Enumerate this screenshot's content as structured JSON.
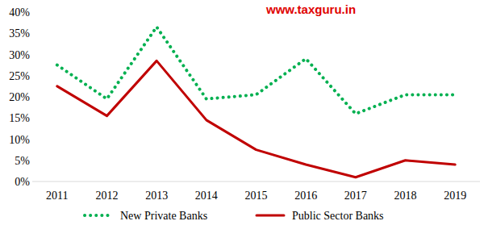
{
  "chart_data": {
    "type": "line",
    "annotations": [
      "www.taxguru.in"
    ],
    "categories": [
      "2011",
      "2012",
      "2013",
      "2014",
      "2015",
      "2016",
      "2017",
      "2018",
      "2019"
    ],
    "series": [
      {
        "name": "New Private Banks",
        "color": "#00b050",
        "line_style": "dotted",
        "values": [
          27.5,
          19.5,
          36.5,
          19.5,
          20.5,
          29,
          16,
          20.5,
          20.5
        ]
      },
      {
        "name": "Public Sector Banks",
        "color": "#c00000",
        "line_style": "solid",
        "values": [
          22.5,
          15.5,
          28.5,
          14.5,
          7.5,
          4,
          1,
          5,
          4
        ]
      }
    ],
    "ylim": [
      0,
      40
    ],
    "yticks": [
      {
        "value": 0,
        "label": "0%"
      },
      {
        "value": 5,
        "label": "5%"
      },
      {
        "value": 10,
        "label": "10%"
      },
      {
        "value": 15,
        "label": "15%"
      },
      {
        "value": 20,
        "label": "20%"
      },
      {
        "value": 25,
        "label": "25%"
      },
      {
        "value": 30,
        "label": "30%"
      },
      {
        "value": 35,
        "label": "35%"
      },
      {
        "value": 40,
        "label": "40%"
      }
    ],
    "grid": false,
    "legend": "bottom"
  }
}
